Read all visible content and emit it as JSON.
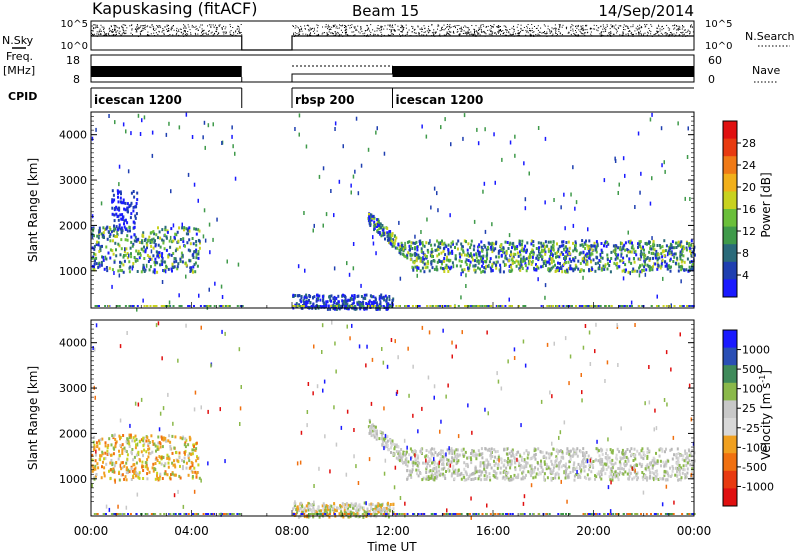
{
  "header": {
    "station": "Kapuskasing (fitACF)",
    "beam": "Beam 15",
    "date": "14/Sep/2014"
  },
  "left_labels": {
    "nsky": "N.Sky",
    "freq": "Freq.",
    "freq_unit": "[MHz]",
    "cpid": "CPID"
  },
  "right_labels": {
    "nsearch": "N.Search",
    "nave": "Nave"
  },
  "cpid_segments": [
    {
      "label": "icescan 1200",
      "start": 0,
      "end": 6
    },
    {
      "label": "rbsp 200",
      "start": 8,
      "end": 12
    },
    {
      "label": "icescan 1200",
      "start": 12,
      "end": 24
    }
  ],
  "noise_panel": {
    "left_ticks": [
      "10^5",
      "10^0"
    ],
    "right_ticks": [
      "10^5",
      "10^0"
    ]
  },
  "freq_panel": {
    "left_ticks": [
      "18",
      "8"
    ],
    "right_ticks": [
      "60",
      "0"
    ]
  },
  "x_axis": {
    "label": "Time UT",
    "ticks": [
      "00:00",
      "04:00",
      "08:00",
      "12:00",
      "16:00",
      "20:00",
      "00:00"
    ]
  },
  "colors": {
    "power_scale": [
      "#1a1aff",
      "#1f3fb0",
      "#2a6a7a",
      "#3f9a4a",
      "#6abf3a",
      "#c8d21f",
      "#f2b01a",
      "#f07a16",
      "#e83a10",
      "#e01010"
    ],
    "velocity_scale": [
      "#1a1aff",
      "#2a4fb5",
      "#3f8a5a",
      "#8ab84a",
      "#c8c8c8",
      "#d8d8d8",
      "#f0a020",
      "#f07010",
      "#e83a10",
      "#e01010"
    ]
  },
  "chart_data": [
    {
      "type": "heatmap",
      "name": "power",
      "ylabel": "Slant Range [km]",
      "xlabel": "",
      "x_range_hours": [
        0,
        24
      ],
      "ylim": [
        180,
        4500
      ],
      "y_ticks": [
        1000,
        2000,
        3000,
        4000
      ],
      "colorbar": {
        "label": "Power [dB]",
        "ticks": [
          "4",
          "8",
          "12",
          "16",
          "20",
          "24",
          "28"
        ]
      },
      "data_gaps_hours": [
        [
          6,
          8
        ]
      ],
      "echo_bands": [
        {
          "t_start": 0.0,
          "t_end": 4.3,
          "range_low": 1000,
          "range_high": 2000
        },
        {
          "t_start": 0.8,
          "t_end": 1.8,
          "range_low": 1900,
          "range_high": 2800
        },
        {
          "t_start": 11.0,
          "t_end": 24.0,
          "range_low": 1000,
          "range_high": 1700
        },
        {
          "t_start": 8.0,
          "t_end": 12.0,
          "range_low": 180,
          "range_high": 500
        }
      ]
    },
    {
      "type": "heatmap",
      "name": "velocity",
      "ylabel": "Slant Range [km]",
      "xlabel": "Time UT",
      "x_range_hours": [
        0,
        24
      ],
      "ylim": [
        180,
        4500
      ],
      "y_ticks": [
        1000,
        2000,
        3000,
        4000
      ],
      "colorbar": {
        "label": "Velocity [m s^-1]",
        "ticks": [
          "1000",
          "500",
          "100",
          "25",
          "-25",
          "-100",
          "-500",
          "-1000"
        ]
      },
      "data_gaps_hours": [
        [
          6,
          8
        ]
      ],
      "echo_bands": [
        {
          "t_start": 0.0,
          "t_end": 4.3,
          "range_low": 1000,
          "range_high": 2000
        },
        {
          "t_start": 11.0,
          "t_end": 24.0,
          "range_low": 1000,
          "range_high": 1700
        },
        {
          "t_start": 8.0,
          "t_end": 12.0,
          "range_low": 180,
          "range_high": 500
        }
      ]
    }
  ]
}
